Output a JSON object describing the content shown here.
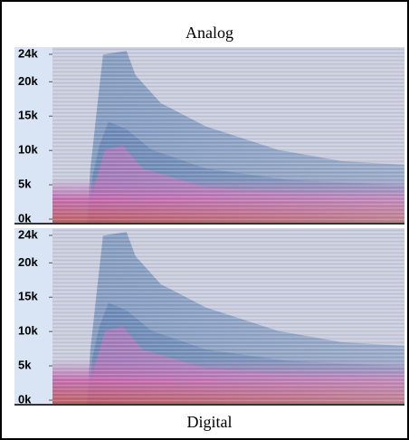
{
  "chart_data": [
    {
      "type": "spectrogram",
      "title": "Analog",
      "ylim": [
        0,
        24000
      ],
      "yticks": [
        {
          "value": 0,
          "label": "0k"
        },
        {
          "value": 5000,
          "label": "5k"
        },
        {
          "value": 10000,
          "label": "10k"
        },
        {
          "value": 15000,
          "label": "15k"
        },
        {
          "value": 20000,
          "label": "20k"
        },
        {
          "value": 24000,
          "label": "24k"
        }
      ]
    },
    {
      "type": "spectrogram",
      "title": "Digital",
      "ylim": [
        0,
        24000
      ],
      "yticks": [
        {
          "value": 0,
          "label": "0k"
        },
        {
          "value": 5000,
          "label": "5k"
        },
        {
          "value": 10000,
          "label": "10k"
        },
        {
          "value": 15000,
          "label": "15k"
        },
        {
          "value": 20000,
          "label": "20k"
        },
        {
          "value": 24000,
          "label": "24k"
        }
      ]
    }
  ]
}
